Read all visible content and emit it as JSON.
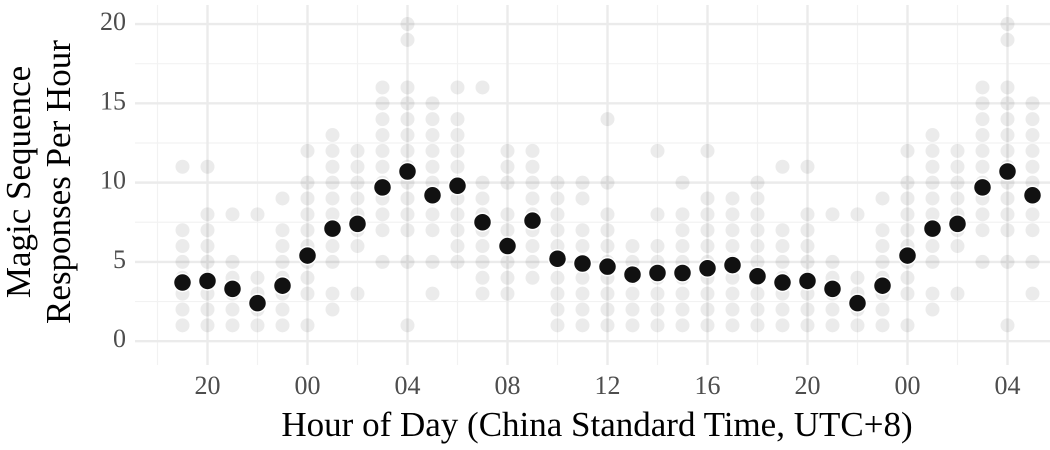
{
  "chart_data": {
    "type": "scatter",
    "xlabel": "Hour of Day (China Standard Time, UTC+8)",
    "ylabel": [
      "Magic Sequence",
      "Responses Per Hour"
    ],
    "x": [
      19,
      20,
      21,
      22,
      23,
      24,
      25,
      26,
      27,
      28,
      29,
      30,
      31,
      32,
      33,
      34,
      35,
      36,
      37,
      38,
      39,
      40,
      41,
      42,
      43,
      44,
      45,
      46,
      47,
      48,
      49,
      50,
      51,
      52,
      53
    ],
    "values": [
      3.7,
      3.8,
      3.3,
      2.4,
      3.5,
      5.4,
      7.1,
      7.4,
      9.7,
      10.7,
      9.2,
      9.8,
      7.5,
      6.0,
      7.6,
      5.2,
      4.9,
      4.7,
      4.2,
      4.3,
      4.3,
      4.6,
      4.8,
      4.1,
      3.7,
      3.8,
      3.3,
      2.4,
      3.5,
      5.4,
      7.1,
      7.4,
      9.7,
      10.7,
      9.2
    ],
    "observations": [
      [
        1,
        2,
        3,
        4,
        5,
        6,
        7,
        11
      ],
      [
        1,
        2,
        3,
        4,
        5,
        6,
        7,
        8,
        11
      ],
      [
        1,
        2,
        3,
        4,
        5,
        8
      ],
      [
        1,
        2,
        3,
        4,
        8
      ],
      [
        1,
        2,
        3,
        4,
        5,
        6,
        7,
        9
      ],
      [
        1,
        3,
        4,
        5,
        6,
        7,
        8,
        9,
        10,
        12
      ],
      [
        2,
        3,
        5,
        6,
        7,
        8,
        9,
        10,
        11,
        12,
        13
      ],
      [
        3,
        6,
        7,
        8,
        9,
        10,
        11,
        12
      ],
      [
        5,
        7,
        8,
        9,
        10,
        11,
        12,
        13,
        14,
        15,
        16
      ],
      [
        1,
        5,
        7,
        8,
        9,
        10,
        11,
        12,
        13,
        14,
        15,
        16,
        19,
        20
      ],
      [
        3,
        5,
        7,
        8,
        9,
        10,
        11,
        12,
        13,
        14,
        15
      ],
      [
        5,
        6,
        7,
        8,
        9,
        10,
        11,
        12,
        13,
        14,
        16
      ],
      [
        3,
        4,
        5,
        6,
        7,
        8,
        9,
        10,
        16
      ],
      [
        3,
        4,
        5,
        6,
        7,
        8,
        10,
        11,
        12
      ],
      [
        4,
        5,
        6,
        7,
        8,
        9,
        10,
        11,
        12
      ],
      [
        1,
        2,
        3,
        4,
        5,
        6,
        7,
        8,
        9,
        10
      ],
      [
        1,
        2,
        3,
        4,
        5,
        6,
        7,
        9,
        10
      ],
      [
        1,
        2,
        3,
        4,
        5,
        6,
        7,
        8,
        10,
        14
      ],
      [
        1,
        2,
        3,
        4,
        5,
        6
      ],
      [
        1,
        2,
        3,
        4,
        5,
        6,
        8,
        12
      ],
      [
        1,
        2,
        3,
        4,
        5,
        6,
        7,
        8,
        10
      ],
      [
        1,
        2,
        3,
        4,
        5,
        6,
        7,
        8,
        9,
        12
      ],
      [
        1,
        2,
        3,
        4,
        5,
        6,
        7,
        8,
        9
      ],
      [
        1,
        2,
        3,
        4,
        5,
        6,
        7,
        8,
        9,
        10
      ],
      [
        1,
        2,
        3,
        4,
        5,
        6,
        7,
        11
      ],
      [
        1,
        2,
        3,
        4,
        5,
        6,
        7,
        8,
        11
      ],
      [
        1,
        2,
        3,
        4,
        5,
        8
      ],
      [
        1,
        2,
        3,
        4,
        8
      ],
      [
        1,
        2,
        3,
        4,
        5,
        6,
        7,
        9
      ],
      [
        1,
        3,
        4,
        5,
        6,
        7,
        8,
        9,
        10,
        12
      ],
      [
        2,
        3,
        5,
        6,
        7,
        8,
        9,
        10,
        11,
        12,
        13
      ],
      [
        3,
        6,
        7,
        8,
        9,
        10,
        11,
        12
      ],
      [
        5,
        7,
        8,
        9,
        10,
        11,
        12,
        13,
        14,
        15,
        16
      ],
      [
        1,
        5,
        7,
        8,
        9,
        10,
        11,
        12,
        13,
        14,
        15,
        16,
        19,
        20
      ],
      [
        3,
        5,
        7,
        8,
        9,
        10,
        11,
        12,
        13,
        14,
        15
      ]
    ],
    "color": "#111111",
    "observation_color": "#000000",
    "xlim": [
      17.1,
      53.7
    ],
    "ylim": [
      -1.5,
      21.2
    ],
    "xticks": [
      {
        "value": 20,
        "label": "20"
      },
      {
        "value": 24,
        "label": "00"
      },
      {
        "value": 28,
        "label": "04"
      },
      {
        "value": 32,
        "label": "08"
      },
      {
        "value": 36,
        "label": "12"
      },
      {
        "value": 40,
        "label": "16"
      },
      {
        "value": 44,
        "label": "20"
      },
      {
        "value": 48,
        "label": "00"
      },
      {
        "value": 52,
        "label": "04"
      }
    ],
    "minor_xticks": [
      18,
      22,
      26,
      30,
      34,
      38,
      42,
      46,
      50
    ],
    "yticks": [
      0,
      5,
      10,
      15,
      20
    ],
    "minor_yticks": [
      2.5,
      7.5,
      12.5,
      17.5
    ],
    "grid": true
  }
}
